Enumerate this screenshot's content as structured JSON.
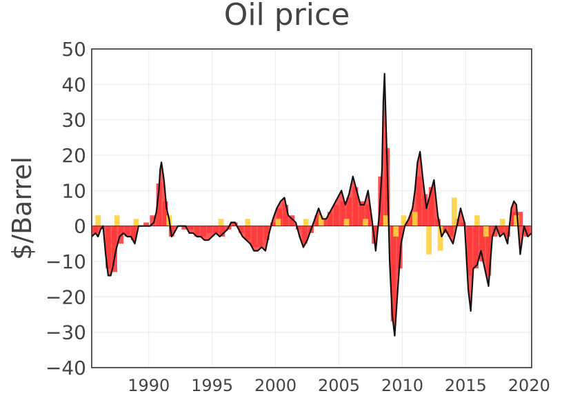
{
  "chart_data": {
    "type": "area",
    "title": "Oil price",
    "xlabel": "",
    "ylabel": "$/Barrel",
    "xlim": [
      1985.5,
      2020.2
    ],
    "ylim": [
      -40,
      50
    ],
    "yticks": [
      50,
      40,
      30,
      20,
      10,
      0,
      -10,
      -20,
      -30,
      -40
    ],
    "ytick_labels": [
      "50",
      "40",
      "30",
      "20",
      "10",
      "0",
      "−10",
      "−20",
      "−30",
      "−40"
    ],
    "xticks": [
      1990,
      1995,
      2000,
      2005,
      2010,
      2015,
      2020
    ],
    "xtick_labels": [
      "1990",
      "1995",
      "2000",
      "2005",
      "2010",
      "2015",
      "2020"
    ],
    "grid": true,
    "legend": "none",
    "colors": {
      "bars_red": "#ff3b3b",
      "bars_yellow": "#ffd23f",
      "line": "#111111",
      "frame": "#222222"
    },
    "series": [
      {
        "type": "line",
        "x": [
          1985.5,
          1985.8,
          1986.0,
          1986.2,
          1986.4,
          1986.6,
          1986.8,
          1987.0,
          1987.2,
          1987.4,
          1987.7,
          1988.0,
          1988.3,
          1988.6,
          1988.9,
          1989.2,
          1989.5,
          1989.8,
          1990.1,
          1990.4,
          1990.6,
          1990.8,
          1990.9,
          1991.0,
          1991.2,
          1991.4,
          1991.6,
          1991.8,
          1992.0,
          1992.3,
          1992.6,
          1992.9,
          1993.2,
          1993.5,
          1993.8,
          1994.1,
          1994.4,
          1994.7,
          1995.0,
          1995.3,
          1995.6,
          1995.9,
          1996.2,
          1996.5,
          1996.8,
          1997.1,
          1997.4,
          1997.7,
          1998.0,
          1998.3,
          1998.6,
          1998.9,
          1999.2,
          1999.5,
          1999.8,
          2000.1,
          2000.4,
          2000.7,
          2001.0,
          2001.3,
          2001.6,
          2001.9,
          2002.2,
          2002.5,
          2002.8,
          2003.1,
          2003.4,
          2003.7,
          2004.0,
          2004.3,
          2004.6,
          2004.9,
          2005.2,
          2005.5,
          2005.8,
          2006.1,
          2006.4,
          2006.7,
          2007.0,
          2007.3,
          2007.6,
          2007.9,
          2008.2,
          2008.4,
          2008.5,
          2008.6,
          2008.8,
          2009.0,
          2009.2,
          2009.4,
          2009.6,
          2009.9,
          2010.2,
          2010.5,
          2010.8,
          2011.0,
          2011.2,
          2011.4,
          2011.6,
          2011.9,
          2012.2,
          2012.5,
          2012.8,
          2013.1,
          2013.4,
          2013.7,
          2014.0,
          2014.3,
          2014.6,
          2014.9,
          2015.0,
          2015.2,
          2015.4,
          2015.6,
          2015.9,
          2016.2,
          2016.5,
          2016.8,
          2017.1,
          2017.4,
          2017.7,
          2018.0,
          2018.3,
          2018.6,
          2018.8,
          2019.0,
          2019.3,
          2019.6,
          2019.9,
          2020.2
        ],
        "y": [
          -3,
          -2,
          -3,
          -1,
          0,
          -8,
          -14,
          -14,
          -11,
          -7,
          -3,
          -2,
          -3,
          -3,
          -5,
          0,
          0,
          0,
          0,
          1,
          4,
          10,
          16,
          18,
          13,
          5,
          2,
          -3,
          -2,
          0,
          0,
          0,
          -2,
          -2,
          -3,
          -3,
          -4,
          -4,
          -3,
          -2,
          -3,
          -2,
          -1,
          1,
          1,
          -1,
          -3,
          -4,
          -5,
          -7,
          -7,
          -6,
          -7,
          -2,
          2,
          5,
          7,
          8,
          3,
          2,
          1,
          -3,
          -6,
          -4,
          -1,
          2,
          5,
          2,
          2,
          4,
          6,
          8,
          10,
          6,
          9,
          14,
          10,
          6,
          6,
          10,
          2,
          -7,
          4,
          16,
          35,
          43,
          18,
          -10,
          -25,
          -31,
          -20,
          -5,
          0,
          2,
          5,
          10,
          18,
          21,
          14,
          5,
          9,
          13,
          3,
          -3,
          -1,
          -3,
          -5,
          0,
          5,
          1,
          -5,
          -18,
          -24,
          -12,
          -11,
          -7,
          -12,
          -17,
          -3,
          0,
          -3,
          -2,
          -5,
          5,
          7,
          6,
          -8,
          0,
          -3,
          -2
        ]
      },
      {
        "type": "bar",
        "name": "",
        "x": [
          1985.8,
          1986.3,
          1986.8,
          1987.3,
          1987.8,
          1988.3,
          1988.8,
          1989.3,
          1989.8,
          1990.3,
          1990.8,
          1991.3,
          1991.8,
          1992.3,
          1992.8,
          1993.3,
          1993.8,
          1994.3,
          1994.8,
          1995.3,
          1995.8,
          1996.3,
          1996.8,
          1997.3,
          1997.8,
          1998.3,
          1998.8,
          1999.3,
          1999.8,
          2000.3,
          2000.8,
          2001.3,
          2001.8,
          2002.3,
          2002.8,
          2003.3,
          2003.8,
          2004.3,
          2004.8,
          2005.3,
          2005.8,
          2006.3,
          2006.8,
          2007.3,
          2007.8,
          2008.3,
          2008.8,
          2009.3,
          2009.8,
          2010.3,
          2010.8,
          2011.3,
          2011.8,
          2012.3,
          2012.8,
          2013.3,
          2013.8,
          2014.3,
          2014.8,
          2015.3,
          2015.8,
          2016.3,
          2016.8,
          2017.3,
          2017.8,
          2018.3,
          2018.8,
          2019.3,
          2019.8
        ],
        "values": [
          -2,
          -1,
          -12,
          -13,
          -5,
          -3,
          -4,
          0,
          1,
          3,
          12,
          7,
          -3,
          0,
          -1,
          -1,
          -3,
          -3,
          -2,
          -2,
          -3,
          -1,
          1,
          -2,
          -4,
          -6,
          -6,
          -4,
          1,
          5,
          6,
          3,
          -1,
          -5,
          -2,
          3,
          2,
          4,
          6,
          7,
          8,
          11,
          7,
          6,
          -5,
          14,
          22,
          -27,
          -12,
          1,
          4,
          14,
          9,
          11,
          2,
          -2,
          -3,
          2,
          1,
          -14,
          -12,
          -10,
          -14,
          -3,
          -2,
          -3,
          4,
          4,
          -3
        ]
      },
      {
        "type": "bar",
        "name": "",
        "x": [
          1986.0,
          1987.5,
          1989.0,
          1991.6,
          1995.7,
          1997.8,
          2000.2,
          2002.4,
          2003.6,
          2005.6,
          2007.1,
          2008.7,
          2009.5,
          2010.1,
          2011.0,
          2012.1,
          2013.0,
          2014.1,
          2015.9,
          2016.6,
          2017.9,
          2019.0
        ],
        "values": [
          3,
          3,
          2,
          3,
          2,
          2,
          2,
          2,
          3,
          2,
          2,
          3,
          -3,
          3,
          4,
          -8,
          -7,
          8,
          3,
          -3,
          2,
          3
        ]
      }
    ]
  }
}
